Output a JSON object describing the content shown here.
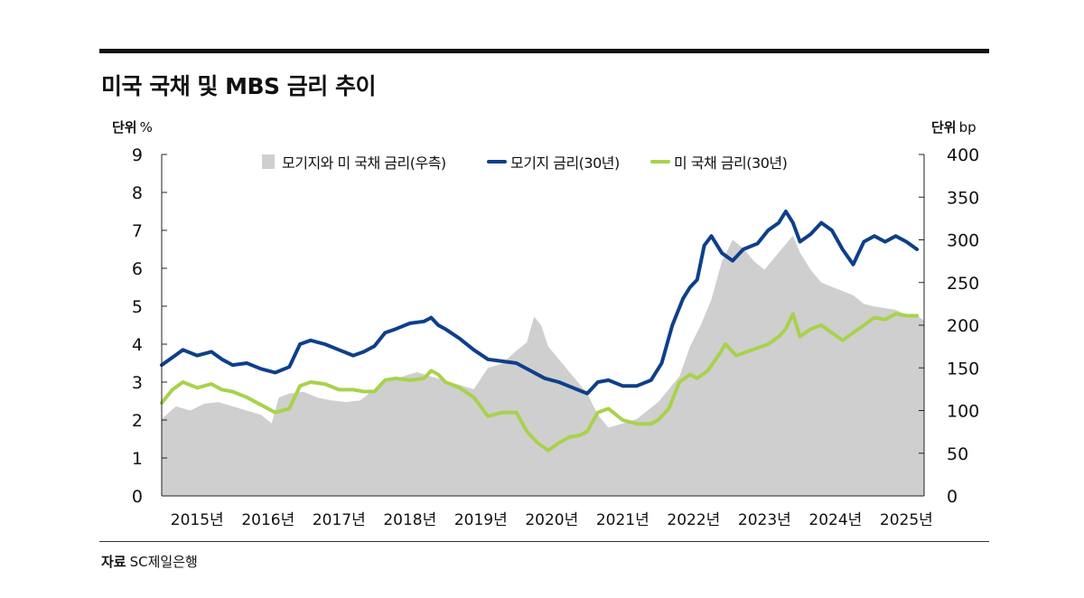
{
  "title": "미국 국채 및 MBS 금리 추이",
  "units": {
    "left_label": "단위",
    "left_unit": "%",
    "right_label": "단위",
    "right_unit": "bp"
  },
  "source": {
    "label": "자료",
    "text": "SC제일은행"
  },
  "colors": {
    "mortgage": "#0e3f8a",
    "treasury": "#a8d24c",
    "spread": "#cfcfcf"
  },
  "chart_data": {
    "type": "line",
    "title": "미국 국채 및 MBS 금리 추이",
    "x_tick_labels": [
      "2015년",
      "2016년",
      "2017년",
      "2018년",
      "2019년",
      "2020년",
      "2021년",
      "2022년",
      "2023년",
      "2024년",
      "2025년"
    ],
    "x_range": [
      2015.0,
      2025.75
    ],
    "y_left": {
      "label": "%",
      "range": [
        0,
        9
      ],
      "ticks": [
        0,
        1,
        2,
        3,
        4,
        5,
        6,
        7,
        8,
        9
      ]
    },
    "y_right": {
      "label": "bp",
      "range": [
        0,
        400
      ],
      "ticks": [
        0,
        50,
        100,
        150,
        200,
        250,
        300,
        350,
        400
      ]
    },
    "legend_position": "top-center",
    "series": [
      {
        "name": "모기지와 미 국채 금리(우측)",
        "type": "area",
        "axis": "right",
        "points": [
          [
            2015.0,
            90
          ],
          [
            2015.2,
            105
          ],
          [
            2015.4,
            100
          ],
          [
            2015.6,
            108
          ],
          [
            2015.8,
            110
          ],
          [
            2016.0,
            105
          ],
          [
            2016.2,
            100
          ],
          [
            2016.4,
            95
          ],
          [
            2016.55,
            85
          ],
          [
            2016.65,
            115
          ],
          [
            2016.8,
            120
          ],
          [
            2017.0,
            122
          ],
          [
            2017.2,
            115
          ],
          [
            2017.4,
            112
          ],
          [
            2017.6,
            110
          ],
          [
            2017.8,
            112
          ],
          [
            2018.0,
            125
          ],
          [
            2018.2,
            135
          ],
          [
            2018.4,
            140
          ],
          [
            2018.6,
            145
          ],
          [
            2018.8,
            140
          ],
          [
            2019.0,
            135
          ],
          [
            2019.2,
            130
          ],
          [
            2019.4,
            125
          ],
          [
            2019.6,
            150
          ],
          [
            2019.8,
            155
          ],
          [
            2020.0,
            170
          ],
          [
            2020.15,
            180
          ],
          [
            2020.25,
            210
          ],
          [
            2020.35,
            200
          ],
          [
            2020.45,
            175
          ],
          [
            2020.6,
            160
          ],
          [
            2020.8,
            140
          ],
          [
            2021.0,
            120
          ],
          [
            2021.15,
            95
          ],
          [
            2021.3,
            80
          ],
          [
            2021.5,
            85
          ],
          [
            2021.7,
            90
          ],
          [
            2021.85,
            100
          ],
          [
            2022.0,
            110
          ],
          [
            2022.15,
            125
          ],
          [
            2022.3,
            140
          ],
          [
            2022.45,
            175
          ],
          [
            2022.6,
            200
          ],
          [
            2022.75,
            230
          ],
          [
            2022.9,
            275
          ],
          [
            2023.05,
            300
          ],
          [
            2023.2,
            290
          ],
          [
            2023.35,
            275
          ],
          [
            2023.5,
            265
          ],
          [
            2023.65,
            280
          ],
          [
            2023.8,
            295
          ],
          [
            2023.9,
            305
          ],
          [
            2024.0,
            285
          ],
          [
            2024.15,
            265
          ],
          [
            2024.3,
            250
          ],
          [
            2024.45,
            245
          ],
          [
            2024.6,
            240
          ],
          [
            2024.75,
            235
          ],
          [
            2024.9,
            225
          ],
          [
            2025.05,
            222
          ],
          [
            2025.2,
            220
          ],
          [
            2025.35,
            218
          ],
          [
            2025.5,
            212
          ],
          [
            2025.65,
            212
          ],
          [
            2025.75,
            205
          ]
        ]
      },
      {
        "name": "모기지 금리(30년)",
        "type": "line",
        "axis": "left",
        "color": "#0e3f8a",
        "points": [
          [
            2015.0,
            3.45
          ],
          [
            2015.15,
            3.65
          ],
          [
            2015.3,
            3.85
          ],
          [
            2015.5,
            3.7
          ],
          [
            2015.7,
            3.8
          ],
          [
            2015.85,
            3.6
          ],
          [
            2016.0,
            3.45
          ],
          [
            2016.2,
            3.5
          ],
          [
            2016.4,
            3.35
          ],
          [
            2016.6,
            3.25
          ],
          [
            2016.8,
            3.4
          ],
          [
            2016.95,
            4.0
          ],
          [
            2017.1,
            4.1
          ],
          [
            2017.3,
            4.0
          ],
          [
            2017.5,
            3.85
          ],
          [
            2017.7,
            3.7
          ],
          [
            2017.85,
            3.8
          ],
          [
            2018.0,
            3.95
          ],
          [
            2018.15,
            4.3
          ],
          [
            2018.3,
            4.4
          ],
          [
            2018.5,
            4.55
          ],
          [
            2018.7,
            4.6
          ],
          [
            2018.8,
            4.7
          ],
          [
            2018.9,
            4.5
          ],
          [
            2019.0,
            4.4
          ],
          [
            2019.2,
            4.15
          ],
          [
            2019.4,
            3.85
          ],
          [
            2019.6,
            3.6
          ],
          [
            2019.8,
            3.55
          ],
          [
            2020.0,
            3.5
          ],
          [
            2020.2,
            3.3
          ],
          [
            2020.4,
            3.1
          ],
          [
            2020.6,
            3.0
          ],
          [
            2020.8,
            2.85
          ],
          [
            2021.0,
            2.7
          ],
          [
            2021.15,
            3.0
          ],
          [
            2021.3,
            3.05
          ],
          [
            2021.5,
            2.9
          ],
          [
            2021.7,
            2.9
          ],
          [
            2021.9,
            3.05
          ],
          [
            2022.05,
            3.5
          ],
          [
            2022.2,
            4.5
          ],
          [
            2022.35,
            5.2
          ],
          [
            2022.45,
            5.5
          ],
          [
            2022.55,
            5.7
          ],
          [
            2022.65,
            6.6
          ],
          [
            2022.75,
            6.85
          ],
          [
            2022.9,
            6.4
          ],
          [
            2023.05,
            6.2
          ],
          [
            2023.2,
            6.5
          ],
          [
            2023.4,
            6.65
          ],
          [
            2023.55,
            7.0
          ],
          [
            2023.7,
            7.2
          ],
          [
            2023.8,
            7.5
          ],
          [
            2023.9,
            7.2
          ],
          [
            2024.0,
            6.7
          ],
          [
            2024.15,
            6.9
          ],
          [
            2024.3,
            7.2
          ],
          [
            2024.45,
            7.0
          ],
          [
            2024.6,
            6.5
          ],
          [
            2024.75,
            6.1
          ],
          [
            2024.9,
            6.7
          ],
          [
            2025.05,
            6.85
          ],
          [
            2025.2,
            6.7
          ],
          [
            2025.35,
            6.85
          ],
          [
            2025.5,
            6.7
          ],
          [
            2025.65,
            6.5
          ]
        ]
      },
      {
        "name": "미 국채 금리(30년)",
        "type": "line",
        "axis": "left",
        "color": "#a8d24c",
        "points": [
          [
            2015.0,
            2.45
          ],
          [
            2015.15,
            2.8
          ],
          [
            2015.3,
            3.0
          ],
          [
            2015.5,
            2.85
          ],
          [
            2015.7,
            2.95
          ],
          [
            2015.85,
            2.8
          ],
          [
            2016.0,
            2.75
          ],
          [
            2016.2,
            2.6
          ],
          [
            2016.4,
            2.4
          ],
          [
            2016.6,
            2.2
          ],
          [
            2016.8,
            2.3
          ],
          [
            2016.95,
            2.9
          ],
          [
            2017.1,
            3.0
          ],
          [
            2017.3,
            2.95
          ],
          [
            2017.5,
            2.8
          ],
          [
            2017.7,
            2.8
          ],
          [
            2017.85,
            2.75
          ],
          [
            2018.0,
            2.75
          ],
          [
            2018.15,
            3.05
          ],
          [
            2018.3,
            3.1
          ],
          [
            2018.5,
            3.05
          ],
          [
            2018.7,
            3.1
          ],
          [
            2018.8,
            3.3
          ],
          [
            2018.9,
            3.2
          ],
          [
            2019.0,
            3.0
          ],
          [
            2019.2,
            2.85
          ],
          [
            2019.4,
            2.6
          ],
          [
            2019.6,
            2.1
          ],
          [
            2019.8,
            2.2
          ],
          [
            2020.0,
            2.2
          ],
          [
            2020.15,
            1.7
          ],
          [
            2020.3,
            1.4
          ],
          [
            2020.45,
            1.2
          ],
          [
            2020.6,
            1.4
          ],
          [
            2020.75,
            1.55
          ],
          [
            2020.9,
            1.6
          ],
          [
            2021.0,
            1.7
          ],
          [
            2021.15,
            2.2
          ],
          [
            2021.3,
            2.3
          ],
          [
            2021.5,
            2.0
          ],
          [
            2021.7,
            1.9
          ],
          [
            2021.9,
            1.9
          ],
          [
            2022.0,
            2.0
          ],
          [
            2022.15,
            2.3
          ],
          [
            2022.3,
            3.0
          ],
          [
            2022.45,
            3.2
          ],
          [
            2022.55,
            3.1
          ],
          [
            2022.7,
            3.3
          ],
          [
            2022.85,
            3.7
          ],
          [
            2022.95,
            4.0
          ],
          [
            2023.1,
            3.7
          ],
          [
            2023.25,
            3.8
          ],
          [
            2023.4,
            3.9
          ],
          [
            2023.55,
            4.0
          ],
          [
            2023.7,
            4.2
          ],
          [
            2023.8,
            4.4
          ],
          [
            2023.9,
            4.8
          ],
          [
            2024.0,
            4.2
          ],
          [
            2024.15,
            4.4
          ],
          [
            2024.3,
            4.5
          ],
          [
            2024.45,
            4.3
          ],
          [
            2024.6,
            4.1
          ],
          [
            2024.75,
            4.3
          ],
          [
            2024.9,
            4.5
          ],
          [
            2025.05,
            4.7
          ],
          [
            2025.2,
            4.65
          ],
          [
            2025.35,
            4.8
          ],
          [
            2025.5,
            4.75
          ],
          [
            2025.65,
            4.75
          ]
        ]
      }
    ]
  }
}
